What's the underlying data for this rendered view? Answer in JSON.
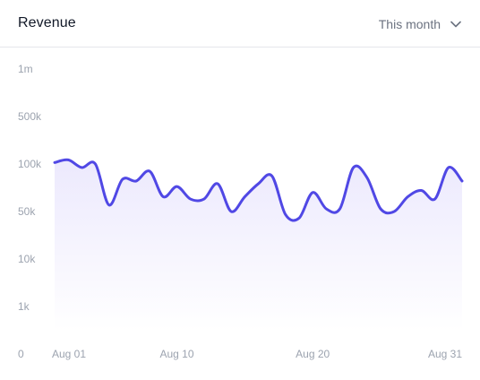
{
  "header": {
    "title": "Revenue",
    "range_label": "This month",
    "range_icon": "chevron-down-icon"
  },
  "colors": {
    "line": "#5048e5",
    "area_top": "#ece9fd",
    "area_bottom": "#ffffff",
    "tick_text": "#9ca3af"
  },
  "chart_data": {
    "type": "area",
    "title": "Revenue",
    "xlabel": "",
    "ylabel": "",
    "y_scale": "log",
    "y_ticks": [
      {
        "label": "1m",
        "value": 1000000
      },
      {
        "label": "500k",
        "value": 500000
      },
      {
        "label": "100k",
        "value": 100000
      },
      {
        "label": "50k",
        "value": 50000
      },
      {
        "label": "10k",
        "value": 10000
      },
      {
        "label": "1k",
        "value": 1000
      },
      {
        "label": "0",
        "value": 0
      }
    ],
    "x_ticks": [
      {
        "label": "Aug 01",
        "day": 1
      },
      {
        "label": "Aug 10",
        "day": 10
      },
      {
        "label": "Aug 20",
        "day": 20
      },
      {
        "label": "Aug 31",
        "day": 31
      }
    ],
    "grid": false,
    "legend": "none",
    "series": [
      {
        "x": [
          1,
          2,
          3,
          4,
          5,
          6,
          7,
          8,
          9,
          10,
          11,
          12,
          13,
          14,
          15,
          16,
          17,
          18,
          19,
          20,
          21,
          22,
          23,
          24,
          25,
          26,
          27,
          28,
          29,
          30,
          31
        ],
        "values": [
          105000,
          115000,
          95000,
          100000,
          55000,
          80000,
          78000,
          90000,
          62000,
          72000,
          60000,
          60000,
          75000,
          50000,
          62000,
          75000,
          84000,
          45000,
          40000,
          66000,
          52000,
          52000,
          95000,
          82000,
          52000,
          50000,
          62000,
          68000,
          60000,
          95000,
          78000
        ]
      }
    ]
  }
}
